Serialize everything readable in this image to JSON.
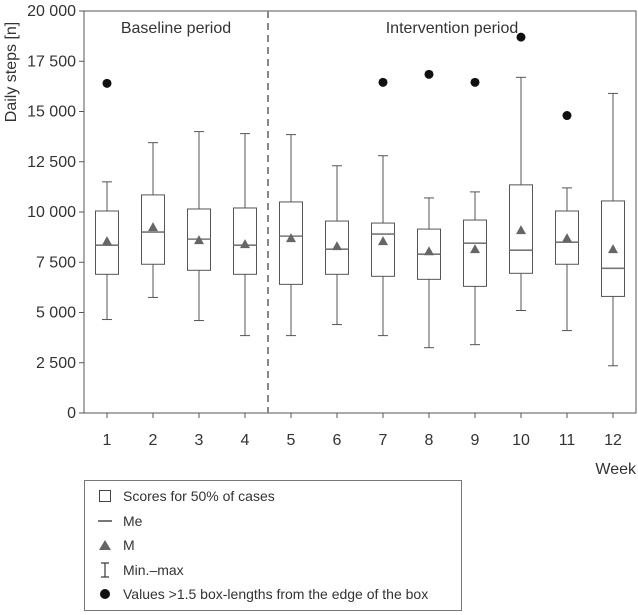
{
  "chart_data": {
    "type": "boxplot",
    "ylabel": "Daily steps [n]",
    "xlabel": "Week",
    "ylim": [
      0,
      20000
    ],
    "yticks": [
      0,
      2500,
      5000,
      7500,
      10000,
      12500,
      15000,
      17500,
      20000
    ],
    "ytick_labels": [
      "0",
      "2 500",
      "5 000",
      "7 500",
      "10 000",
      "12 500",
      "15 000",
      "17 500",
      "20 000"
    ],
    "categories": [
      "1",
      "2",
      "3",
      "4",
      "5",
      "6",
      "7",
      "8",
      "9",
      "10",
      "11",
      "12"
    ],
    "periods": [
      {
        "label": "Baseline period",
        "weeks": [
          "1",
          "2",
          "3",
          "4"
        ]
      },
      {
        "label": "Intervention period",
        "weeks": [
          "5",
          "6",
          "7",
          "8",
          "9",
          "10",
          "11",
          "12"
        ]
      }
    ],
    "divider_after_week": "4",
    "boxes": [
      {
        "week": "1",
        "min": 4650,
        "q1": 6900,
        "median": 8350,
        "q3": 10050,
        "max": 11500,
        "mean": 8550,
        "outliers": [
          16400
        ]
      },
      {
        "week": "2",
        "min": 5750,
        "q1": 7400,
        "median": 9000,
        "q3": 10850,
        "max": 13450,
        "mean": 9250,
        "outliers": []
      },
      {
        "week": "3",
        "min": 4600,
        "q1": 7100,
        "median": 8650,
        "q3": 10150,
        "max": 14000,
        "mean": 8600,
        "outliers": []
      },
      {
        "week": "4",
        "min": 3850,
        "q1": 6900,
        "median": 8350,
        "q3": 10200,
        "max": 13900,
        "mean": 8400,
        "outliers": []
      },
      {
        "week": "5",
        "min": 3850,
        "q1": 6400,
        "median": 8800,
        "q3": 10500,
        "max": 13850,
        "mean": 8700,
        "outliers": []
      },
      {
        "week": "6",
        "min": 4400,
        "q1": 6900,
        "median": 8150,
        "q3": 9550,
        "max": 12300,
        "mean": 8300,
        "outliers": []
      },
      {
        "week": "7",
        "min": 3850,
        "q1": 6800,
        "median": 8900,
        "q3": 9450,
        "max": 12800,
        "mean": 8550,
        "outliers": [
          16450
        ]
      },
      {
        "week": "8",
        "min": 3250,
        "q1": 6650,
        "median": 7900,
        "q3": 9150,
        "max": 10700,
        "mean": 8050,
        "outliers": [
          16850
        ]
      },
      {
        "week": "9",
        "min": 3400,
        "q1": 6300,
        "median": 8450,
        "q3": 9600,
        "max": 11000,
        "mean": 8150,
        "outliers": [
          16450
        ]
      },
      {
        "week": "10",
        "min": 5100,
        "q1": 6950,
        "median": 8100,
        "q3": 11350,
        "max": 16700,
        "mean": 9100,
        "outliers": [
          18700
        ]
      },
      {
        "week": "11",
        "min": 4100,
        "q1": 7400,
        "median": 8500,
        "q3": 10050,
        "max": 11200,
        "mean": 8700,
        "outliers": [
          14800
        ]
      },
      {
        "week": "12",
        "min": 2350,
        "q1": 5800,
        "median": 7200,
        "q3": 10550,
        "max": 15900,
        "mean": 8150,
        "outliers": []
      }
    ],
    "legend": [
      {
        "symbol": "box",
        "label": "Scores for 50% of cases"
      },
      {
        "symbol": "median-line",
        "label": "Me"
      },
      {
        "symbol": "mean-triangle",
        "label": "M"
      },
      {
        "symbol": "whisker",
        "label": "Min.–max"
      },
      {
        "symbol": "outlier-dot",
        "label": "Values >1.5 box-lengths from the edge of the box"
      }
    ],
    "legend_placement": "bottom-left",
    "grid": false,
    "colors": {
      "box_stroke": "#555555",
      "median": "#777777",
      "mean": "#666666",
      "outlier": "#111111",
      "divider": "#888888"
    }
  }
}
